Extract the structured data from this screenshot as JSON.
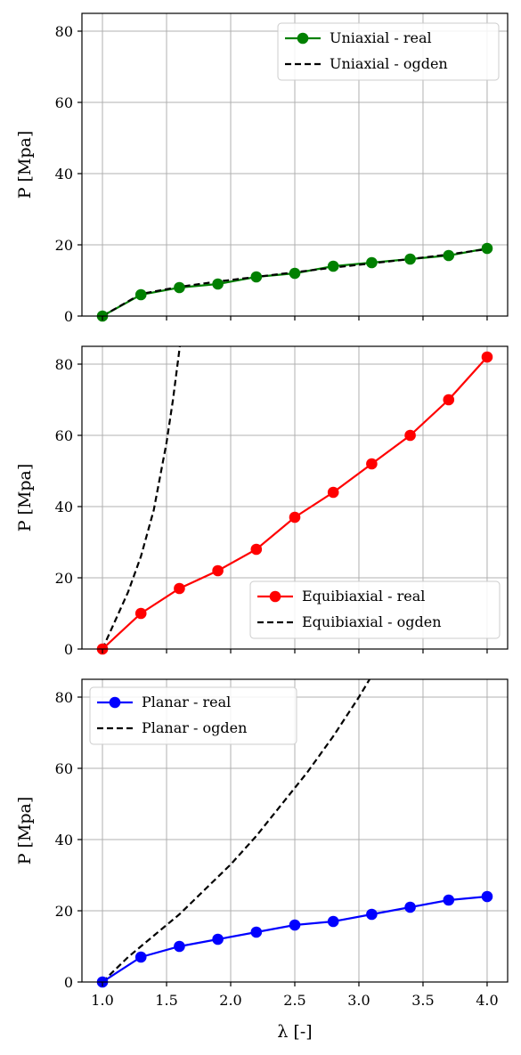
{
  "chart_data": [
    {
      "type": "line",
      "xlim": [
        0.84,
        4.16
      ],
      "ylim": [
        0,
        85
      ],
      "xticks": [
        1.0,
        1.5,
        2.0,
        2.5,
        3.0,
        3.5,
        4.0
      ],
      "yticks": [
        0,
        20,
        40,
        60,
        80
      ],
      "show_xtick_labels": false,
      "xlabel": "",
      "ylabel": "P [Mpa]",
      "grid": true,
      "legend_position": "top-right",
      "series": [
        {
          "name": "Uniaxial - real",
          "style": "solid-marker",
          "color": "#008000",
          "x": [
            1.0,
            1.3,
            1.6,
            1.9,
            2.2,
            2.5,
            2.8,
            3.1,
            3.4,
            3.7,
            4.0
          ],
          "y": [
            0,
            6,
            8,
            9,
            11,
            12,
            14,
            15,
            16,
            17,
            19
          ]
        },
        {
          "name": "Uniaxial - ogden",
          "style": "dashed",
          "color": "#000000",
          "x": [
            1.0,
            1.3,
            1.6,
            1.9,
            2.2,
            2.5,
            2.8,
            3.1,
            3.4,
            3.7,
            4.0
          ],
          "y": [
            0,
            6.2,
            8.2,
            9.7,
            11,
            12.3,
            13.6,
            14.8,
            16,
            17.3,
            18.8
          ]
        }
      ]
    },
    {
      "type": "line",
      "xlim": [
        0.84,
        4.16
      ],
      "ylim": [
        0,
        85
      ],
      "xticks": [
        1.0,
        1.5,
        2.0,
        2.5,
        3.0,
        3.5,
        4.0
      ],
      "yticks": [
        0,
        20,
        40,
        60,
        80
      ],
      "show_xtick_labels": false,
      "xlabel": "",
      "ylabel": "P [Mpa]",
      "grid": true,
      "legend_position": "bottom-right",
      "series": [
        {
          "name": "Equibiaxial - real",
          "style": "solid-marker",
          "color": "#ff0000",
          "x": [
            1.0,
            1.3,
            1.6,
            1.9,
            2.2,
            2.5,
            2.8,
            3.1,
            3.4,
            3.7,
            4.0
          ],
          "y": [
            0,
            10,
            17,
            22,
            28,
            37,
            44,
            52,
            60,
            70,
            82
          ]
        },
        {
          "name": "Equibiaxial - ogden",
          "style": "dashed",
          "color": "#000000",
          "x": [
            1.0,
            1.1,
            1.2,
            1.3,
            1.4,
            1.5,
            1.55,
            1.6,
            1.63
          ],
          "y": [
            0,
            8,
            16,
            26,
            39,
            58,
            70,
            84,
            92
          ]
        }
      ]
    },
    {
      "type": "line",
      "xlim": [
        0.84,
        4.16
      ],
      "ylim": [
        0,
        85
      ],
      "xticks": [
        1.0,
        1.5,
        2.0,
        2.5,
        3.0,
        3.5,
        4.0
      ],
      "yticks": [
        0,
        20,
        40,
        60,
        80
      ],
      "show_xtick_labels": true,
      "xlabel": "λ [-]",
      "ylabel": "P [Mpa]",
      "grid": true,
      "legend_position": "top-left",
      "series": [
        {
          "name": "Planar - real",
          "style": "solid-marker",
          "color": "#0000ff",
          "x": [
            1.0,
            1.3,
            1.6,
            1.9,
            2.2,
            2.5,
            2.8,
            3.1,
            3.4,
            3.7,
            4.0
          ],
          "y": [
            0,
            7,
            10,
            12,
            14,
            16,
            17,
            19,
            21,
            23,
            24
          ]
        },
        {
          "name": "Planar - ogden",
          "style": "dashed",
          "color": "#000000",
          "x": [
            1.0,
            1.2,
            1.4,
            1.6,
            1.8,
            2.0,
            2.2,
            2.4,
            2.6,
            2.8,
            3.0,
            3.1,
            3.15
          ],
          "y": [
            0,
            7,
            13,
            19,
            26,
            33,
            41,
            50,
            59,
            69,
            80,
            86,
            90
          ]
        }
      ]
    }
  ]
}
